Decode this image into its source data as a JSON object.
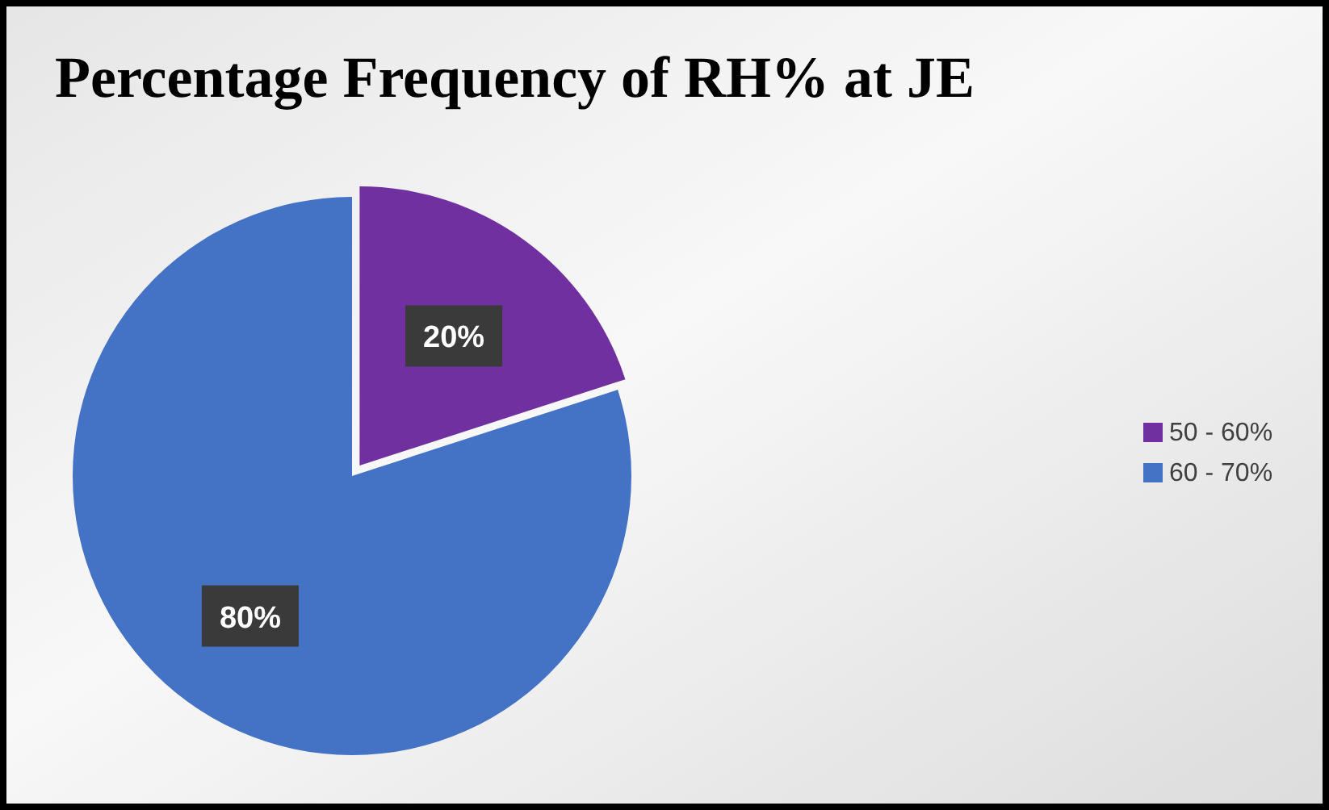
{
  "chart_data": {
    "type": "pie",
    "title": "Percentage Frequency of RH% at JE",
    "categories": [
      "50 - 60%",
      "60 - 70%"
    ],
    "values": [
      20,
      80
    ],
    "value_labels": [
      "20%",
      "80%"
    ],
    "colors": [
      "#7030a0",
      "#4472c4"
    ],
    "data_labels": true,
    "legend": "right"
  }
}
